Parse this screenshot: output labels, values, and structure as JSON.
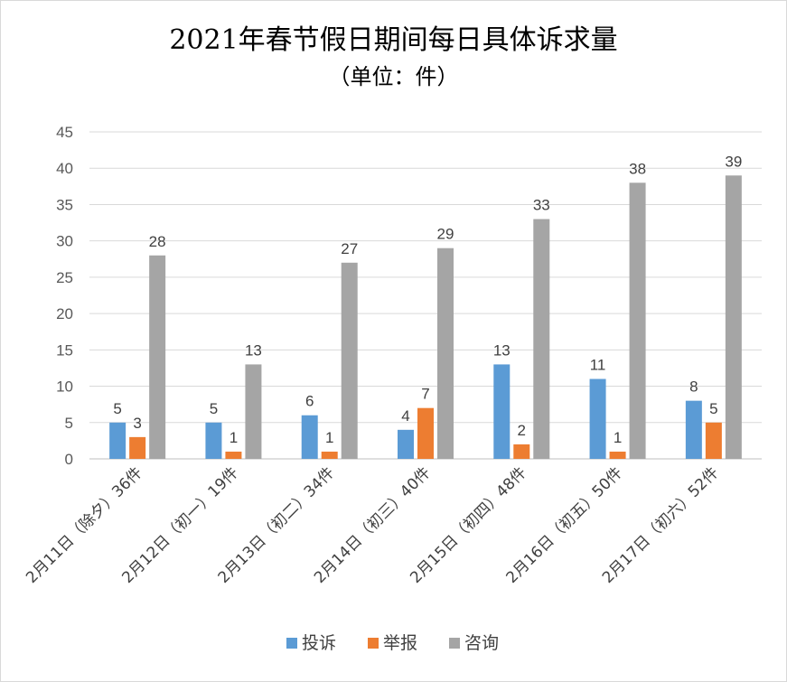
{
  "title": "2021年春节假日期间每日具体诉求量",
  "subtitle": "（单位：件）",
  "chart_data": {
    "type": "bar",
    "title": "2021年春节假日期间每日具体诉求量",
    "subtitle": "（单位：件）",
    "categories": [
      "2月11日（除夕）36件",
      "2月12日（初一）19件",
      "2月13日（初二）34件",
      "2月14日（初三）40件",
      "2月15日（初四）48件",
      "2月16日（初五）50件",
      "2月17日（初六）52件"
    ],
    "series": [
      {
        "name": "投诉",
        "color": "#5B9BD5",
        "values": [
          5,
          5,
          6,
          4,
          13,
          11,
          8
        ]
      },
      {
        "name": "举报",
        "color": "#ED7D31",
        "values": [
          3,
          1,
          1,
          7,
          2,
          1,
          5
        ]
      },
      {
        "name": "咨询",
        "color": "#A5A5A5",
        "values": [
          28,
          13,
          27,
          29,
          33,
          38,
          39
        ]
      }
    ],
    "ylim": [
      0,
      45
    ],
    "yticks": [
      0,
      5,
      10,
      15,
      20,
      25,
      30,
      35,
      40,
      45
    ],
    "grid": true,
    "legend": "bottom",
    "data_labels": true
  }
}
